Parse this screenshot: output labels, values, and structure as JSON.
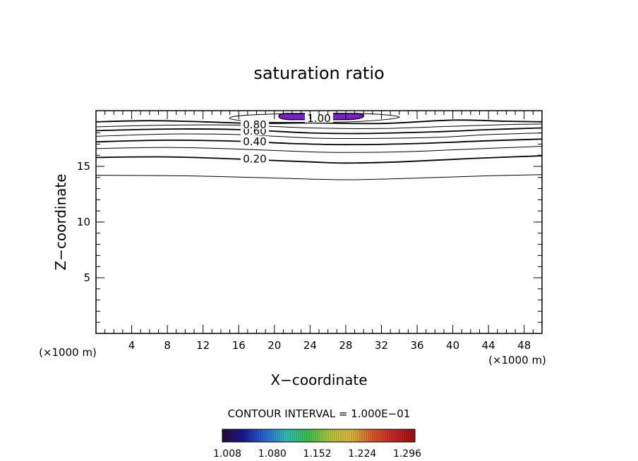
{
  "chart_data": {
    "type": "contour",
    "title": "saturation ratio",
    "xlabel": "X−coordinate",
    "ylabel": "Z−coordinate",
    "x_unit_left": "(×1000 m)",
    "x_unit_right": "(×1000 m)",
    "xlim": [
      0,
      50
    ],
    "ylim": [
      0,
      20
    ],
    "x_ticks": [
      4,
      8,
      12,
      16,
      20,
      24,
      28,
      32,
      36,
      40,
      44,
      48
    ],
    "y_ticks": [
      5,
      10,
      15
    ],
    "x_tick_labels": [
      "4",
      "8",
      "12",
      "16",
      "20",
      "24",
      "28",
      "32",
      "36",
      "40",
      "44",
      "48"
    ],
    "y_tick_labels": [
      "5",
      "10",
      "15"
    ],
    "contour_interval_text": "CONTOUR INTERVAL = 1.000E−01",
    "contours": [
      {
        "level": "0.10",
        "label": "",
        "points": [
          [
            0,
            14.2
          ],
          [
            10,
            14.15
          ],
          [
            20,
            13.95
          ],
          [
            28,
            13.8
          ],
          [
            36,
            13.95
          ],
          [
            44,
            14.15
          ],
          [
            50,
            14.25
          ]
        ]
      },
      {
        "level": "0.20",
        "label": "0.20",
        "points": [
          [
            0,
            15.8
          ],
          [
            8,
            15.85
          ],
          [
            16,
            15.65
          ],
          [
            24,
            15.4
          ],
          [
            28,
            15.3
          ],
          [
            34,
            15.4
          ],
          [
            42,
            15.7
          ],
          [
            50,
            15.95
          ]
        ]
      },
      {
        "level": "0.30",
        "label": "",
        "points": [
          [
            0,
            16.6
          ],
          [
            8,
            16.7
          ],
          [
            16,
            16.55
          ],
          [
            24,
            16.3
          ],
          [
            28,
            16.25
          ],
          [
            34,
            16.3
          ],
          [
            42,
            16.55
          ],
          [
            50,
            16.8
          ]
        ]
      },
      {
        "level": "0.40",
        "label": "0.40",
        "points": [
          [
            0,
            17.2
          ],
          [
            8,
            17.35
          ],
          [
            16,
            17.25
          ],
          [
            22,
            17.05
          ],
          [
            28,
            16.95
          ],
          [
            36,
            17.05
          ],
          [
            44,
            17.3
          ],
          [
            50,
            17.45
          ]
        ]
      },
      {
        "level": "0.50",
        "label": "",
        "points": [
          [
            0,
            17.7
          ],
          [
            8,
            17.9
          ],
          [
            16,
            17.85
          ],
          [
            24,
            17.55
          ],
          [
            30,
            17.5
          ],
          [
            38,
            17.6
          ],
          [
            44,
            17.85
          ],
          [
            50,
            18.0
          ]
        ]
      },
      {
        "level": "0.60",
        "label": "0.60",
        "points": [
          [
            0,
            18.2
          ],
          [
            8,
            18.35
          ],
          [
            16,
            18.3
          ],
          [
            24,
            18.0
          ],
          [
            30,
            17.95
          ],
          [
            38,
            18.1
          ],
          [
            44,
            18.3
          ],
          [
            50,
            18.45
          ]
        ]
      },
      {
        "level": "0.70",
        "label": "",
        "points": [
          [
            0,
            18.55
          ],
          [
            8,
            18.7
          ],
          [
            16,
            18.7
          ],
          [
            24,
            18.45
          ],
          [
            32,
            18.4
          ],
          [
            40,
            18.6
          ],
          [
            46,
            18.75
          ],
          [
            50,
            18.8
          ]
        ]
      },
      {
        "level": "0.80",
        "label": "0.80",
        "points": [
          [
            0,
            19.0
          ],
          [
            6,
            19.1
          ],
          [
            12,
            19.0
          ],
          [
            18,
            18.85
          ],
          [
            24,
            18.9
          ],
          [
            32,
            18.85
          ],
          [
            40,
            19.15
          ],
          [
            46,
            19.05
          ],
          [
            50,
            19.0
          ]
        ]
      },
      {
        "level": "0.90",
        "label": "",
        "points": [
          [
            15,
            19.3
          ],
          [
            18,
            19.0
          ],
          [
            24,
            18.95
          ],
          [
            30,
            19.05
          ],
          [
            34,
            19.4
          ],
          [
            31,
            19.7
          ],
          [
            24,
            19.75
          ],
          [
            17,
            19.6
          ],
          [
            15,
            19.3
          ]
        ],
        "closed": true
      }
    ],
    "supersaturated_region": {
      "level": "1.00",
      "label": "1.00",
      "x_range": [
        20.5,
        30
      ],
      "z_range": [
        19.2,
        19.75
      ],
      "color": "#7b1fd0"
    },
    "colorbar": {
      "tick_labels": [
        "1.008",
        "1.080",
        "1.152",
        "1.224",
        "1.296"
      ],
      "colors": [
        "#2a0a40",
        "#1a1a9a",
        "#2f6fe0",
        "#34c8c0",
        "#3ec850",
        "#b8d040",
        "#e8c040",
        "#e06030",
        "#d02828",
        "#a01010"
      ]
    }
  }
}
